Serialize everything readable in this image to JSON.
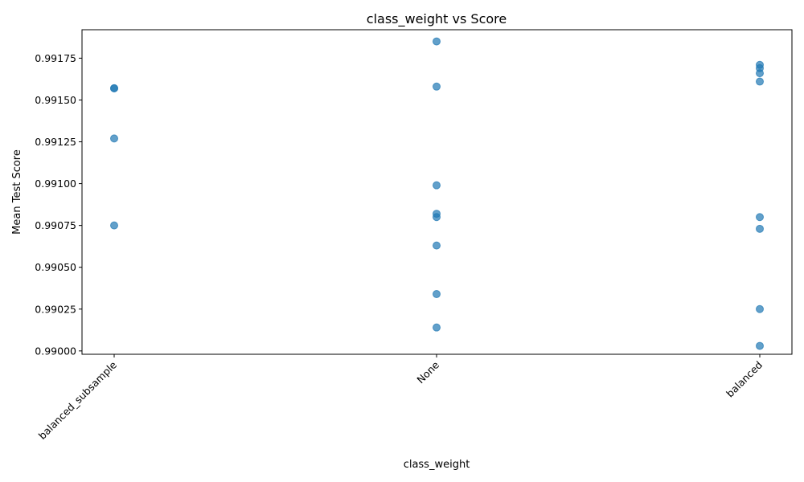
{
  "chart_data": {
    "type": "scatter",
    "title": "class_weight vs Score",
    "xlabel": "class_weight",
    "ylabel": "Mean Test Score",
    "categories": [
      "balanced_subsample",
      "None",
      "balanced"
    ],
    "ylim": [
      0.98998,
      0.99192
    ],
    "yticks": [
      0.99,
      0.99025,
      0.9905,
      0.99075,
      0.991,
      0.99125,
      0.9915,
      0.99175
    ],
    "ytick_labels": [
      "0.99000",
      "0.99025",
      "0.99050",
      "0.99075",
      "0.99100",
      "0.99125",
      "0.99150",
      "0.99175"
    ],
    "point_color": "#1f77b4",
    "points": [
      {
        "x": "balanced_subsample",
        "y": 0.99157
      },
      {
        "x": "balanced_subsample",
        "y": 0.99157
      },
      {
        "x": "balanced_subsample",
        "y": 0.99127
      },
      {
        "x": "balanced_subsample",
        "y": 0.99075
      },
      {
        "x": "None",
        "y": 0.99185
      },
      {
        "x": "None",
        "y": 0.99158
      },
      {
        "x": "None",
        "y": 0.99099
      },
      {
        "x": "None",
        "y": 0.99082
      },
      {
        "x": "None",
        "y": 0.9908
      },
      {
        "x": "None",
        "y": 0.99063
      },
      {
        "x": "None",
        "y": 0.99034
      },
      {
        "x": "None",
        "y": 0.99014
      },
      {
        "x": "balanced",
        "y": 0.99171
      },
      {
        "x": "balanced",
        "y": 0.99169
      },
      {
        "x": "balanced",
        "y": 0.99166
      },
      {
        "x": "balanced",
        "y": 0.99161
      },
      {
        "x": "balanced",
        "y": 0.9908
      },
      {
        "x": "balanced",
        "y": 0.99073
      },
      {
        "x": "balanced",
        "y": 0.99025
      },
      {
        "x": "balanced",
        "y": 0.99003
      }
    ]
  }
}
